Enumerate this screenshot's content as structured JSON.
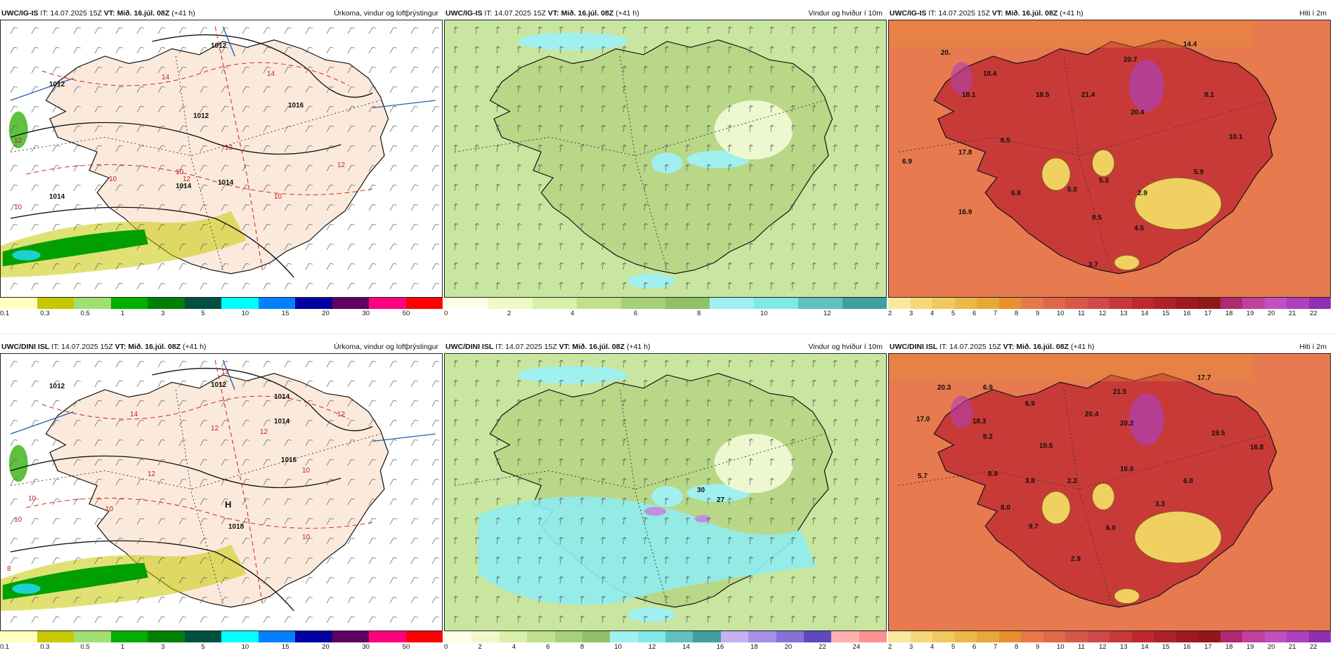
{
  "panels": [
    {
      "id": "p1",
      "model": "UWC/IG-IS",
      "it": "IT: 14.07.2025 15Z",
      "vt": "VT: Mið. 16.júl. 08Z",
      "lead": "(+41 h)",
      "field": "Úrkoma, vindur og loftþrýstingur",
      "variant": "precip",
      "colors": [
        "#ffffc0",
        "#c8c800",
        "#a0e070",
        "#00b000",
        "#008000",
        "#005040",
        "#00ffff",
        "#0080ff",
        "#0000a0",
        "#600060",
        "#ff0080",
        "#ff0000"
      ],
      "tick_labels": [
        "0.1",
        "0.3",
        "0.5",
        "1",
        "3",
        "5",
        "10",
        "15",
        "20",
        "30",
        "50"
      ],
      "map_labels": [
        "1012",
        "1014",
        "1012",
        "1016",
        "1014",
        "1012",
        "1014",
        "14",
        "14",
        "12",
        "12",
        "12",
        "12",
        "10",
        "10",
        "10",
        "10"
      ]
    },
    {
      "id": "p2",
      "model": "UWC/IG-IS",
      "it": "IT: 14.07.2025 15Z",
      "vt": "VT: Mið. 16.júl. 08Z",
      "lead": "(+41 h)",
      "field": "Vindur og hviður í 10m",
      "variant": "wind",
      "colors": [
        "#fdfde8",
        "#f0f8c8",
        "#d8f0a8",
        "#c0e090",
        "#a8d078",
        "#90c068",
        "#a0f0f0",
        "#80e8e8",
        "#60c0c0",
        "#40a0a0"
      ],
      "tick_labels": [
        "0",
        "2",
        "4",
        "6",
        "8",
        "10",
        "12"
      ],
      "map_labels": []
    },
    {
      "id": "p3",
      "model": "UWC/IG-IS",
      "it": "IT: 14.07.2025 15Z",
      "vt": "VT: Mið. 16.júl. 08Z",
      "lead": "(+41 h)",
      "field": "Hiti í 2m",
      "variant": "temp",
      "colors": [
        "#f8e8a0",
        "#f4d878",
        "#f0c860",
        "#ecb848",
        "#e8a838",
        "#e89030",
        "#e87848",
        "#e06848",
        "#d85848",
        "#d04848",
        "#c83838",
        "#c02830",
        "#b02028",
        "#a01820",
        "#901818",
        "#b02870",
        "#c040a0",
        "#c050c0",
        "#b040c0",
        "#9030b0"
      ],
      "tick_labels": [
        "2",
        "3",
        "4",
        "5",
        "6",
        "7",
        "8",
        "9",
        "10",
        "11",
        "12",
        "13",
        "14",
        "15",
        "16",
        "17",
        "18",
        "19",
        "20",
        "21",
        "22"
      ],
      "map_labels": [
        "20.",
        "18.4",
        "18.1",
        "18.5",
        "21.4",
        "20.7",
        "14.4",
        "8.1",
        "20.4",
        "10.1",
        "6.5",
        "17.8",
        "6.9",
        "5.9",
        "5.0",
        "6.8",
        "5.3",
        "2.9",
        "16.9",
        "8.5",
        "4.5",
        "3.7"
      ]
    },
    {
      "id": "p4",
      "model": "UWC/DINI ISL",
      "it": "IT: 14.07.2025 15Z",
      "vt": "VT: Mið. 16.júl. 08Z",
      "lead": "(+41 h)",
      "field": "Úrkoma, vindur og loftþrýstingur",
      "variant": "precip",
      "colors": [
        "#ffffc0",
        "#c8c800",
        "#a0e070",
        "#00b000",
        "#008000",
        "#005040",
        "#00ffff",
        "#0080ff",
        "#0000a0",
        "#600060",
        "#ff0080",
        "#ff0000"
      ],
      "tick_labels": [
        "0.1",
        "0.3",
        "0.5",
        "1",
        "3",
        "5",
        "10",
        "15",
        "20",
        "30",
        "50"
      ],
      "map_labels": [
        "1012",
        "1014",
        "1016",
        "1014",
        "1012",
        "H",
        "1018",
        "14",
        "14",
        "12",
        "12",
        "12",
        "12",
        "10",
        "10",
        "10",
        "10",
        "10",
        "8"
      ]
    },
    {
      "id": "p5",
      "model": "UWC/DINI ISL",
      "it": "IT: 14.07.2025 15Z",
      "vt": "VT: Mið. 16.júl. 08Z",
      "lead": "(+41 h)",
      "field": "Vindur og hviður í 10m",
      "variant": "wind2",
      "colors": [
        "#fdfde8",
        "#f0f8c8",
        "#d8f0a8",
        "#c0e090",
        "#a8d078",
        "#90c068",
        "#a0f0f0",
        "#80e8e8",
        "#60c0c0",
        "#40a0a0",
        "#c8b0f0",
        "#a890e8",
        "#8870d8",
        "#6048c0",
        "#ffb0b0",
        "#ff9090"
      ],
      "tick_labels": [
        "0",
        "2",
        "4",
        "6",
        "8",
        "10",
        "12",
        "14",
        "16",
        "18",
        "20",
        "22",
        "24"
      ],
      "map_labels": [
        "30",
        "27"
      ]
    },
    {
      "id": "p6",
      "model": "UWC/DINI ISL",
      "it": "IT: 14.07.2025 15Z",
      "vt": "VT: Mið. 16.júl. 08Z",
      "lead": "(+41 h)",
      "field": "Hiti í 2m",
      "variant": "temp",
      "colors": [
        "#f8e8a0",
        "#f4d878",
        "#f0c860",
        "#ecb848",
        "#e8a838",
        "#e89030",
        "#e87848",
        "#e06848",
        "#d85848",
        "#d04848",
        "#c83838",
        "#c02830",
        "#b02028",
        "#a01820",
        "#901818",
        "#b02870",
        "#c040a0",
        "#c050c0",
        "#b040c0",
        "#9030b0"
      ],
      "tick_labels": [
        "2",
        "3",
        "4",
        "5",
        "6",
        "7",
        "8",
        "9",
        "10",
        "11",
        "12",
        "13",
        "14",
        "15",
        "16",
        "17",
        "18",
        "19",
        "20",
        "21",
        "22"
      ],
      "map_labels": [
        "20.3",
        "6.9",
        "17.0",
        "18.3",
        "6.9",
        "21.5",
        "17.7",
        "20.4",
        "20.2",
        "19.5",
        "16.8",
        "8.2",
        "10.5",
        "16.0",
        "5.7",
        "8.9",
        "3.8",
        "2.2",
        "6.8",
        "3.3",
        "8.0",
        "9.7",
        "6.0",
        "2.9"
      ]
    }
  ]
}
